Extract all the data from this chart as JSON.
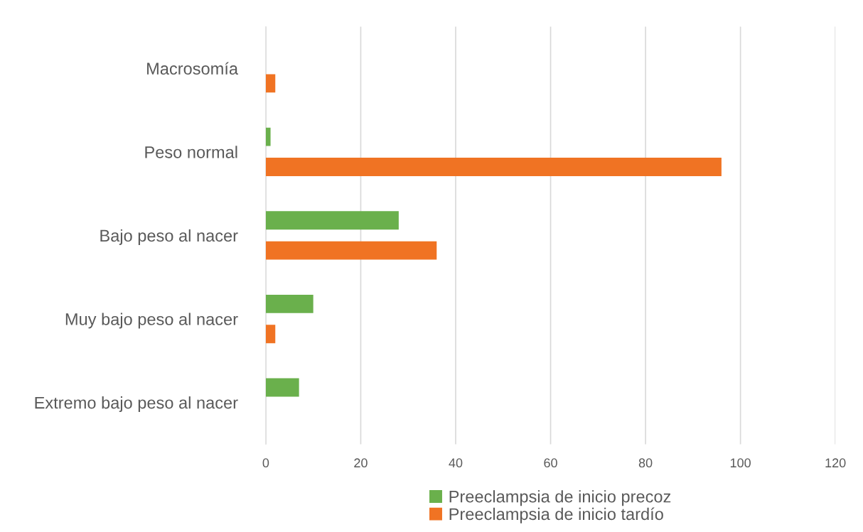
{
  "chart_data": {
    "type": "bar",
    "orientation": "horizontal",
    "categories": [
      "Macrosomía",
      "Peso normal",
      "Bajo peso al nacer",
      "Muy bajo peso al nacer",
      "Extremo bajo peso al nacer"
    ],
    "series": [
      {
        "name": "Preeclampsia de inicio precoz",
        "color": "#6ab04c",
        "values": [
          0,
          1,
          28,
          10,
          7
        ]
      },
      {
        "name": "Preeclampsia de inicio tardío",
        "color": "#f07323",
        "values": [
          2,
          96,
          36,
          2,
          0
        ]
      }
    ],
    "xlim": [
      0,
      120
    ],
    "xticks": [
      0,
      20,
      40,
      60,
      80,
      100,
      120
    ],
    "grid": "x",
    "legend": "bottom"
  }
}
